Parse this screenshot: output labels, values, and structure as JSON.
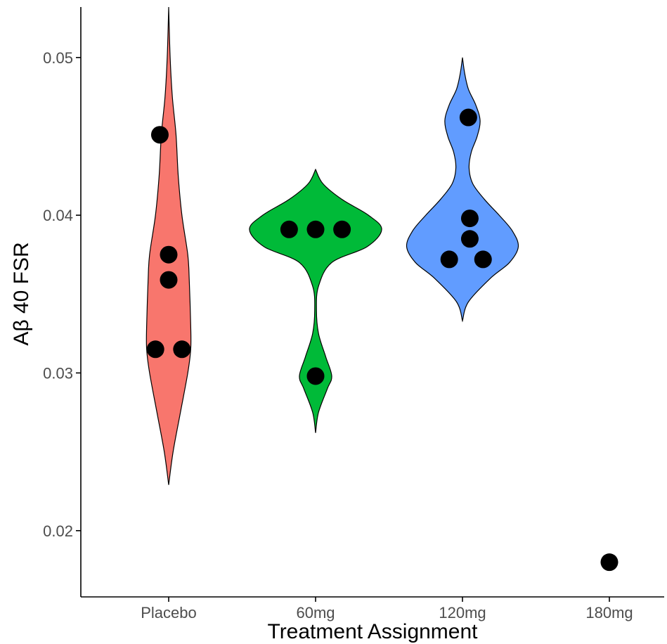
{
  "chart_data": {
    "type": "violin",
    "xlabel": "Treatment Assignment",
    "ylabel": "Aβ 40 FSR",
    "categories": [
      "Placebo",
      "60mg",
      "120mg",
      "180mg"
    ],
    "ylim": [
      0.0158,
      0.0532
    ],
    "yticks": [
      {
        "value": 0.02,
        "label": "0.02"
      },
      {
        "value": 0.03,
        "label": "0.03"
      },
      {
        "value": 0.04,
        "label": "0.04"
      },
      {
        "value": 0.05,
        "label": "0.05"
      }
    ],
    "grid": false,
    "legend": "none",
    "groups": [
      {
        "category": "Placebo",
        "color": "#F8766D",
        "points": [
          {
            "offset": -0.09,
            "y": 0.0315
          },
          {
            "offset": 0.09,
            "y": 0.0315
          },
          {
            "offset": 0.0,
            "y": 0.0359
          },
          {
            "offset": 0.0,
            "y": 0.0375
          },
          {
            "offset": -0.06,
            "y": 0.0451
          }
        ],
        "violin": [
          {
            "y": 0.0229,
            "w": 0.0
          },
          {
            "y": 0.025,
            "w": 0.03
          },
          {
            "y": 0.0275,
            "w": 0.08
          },
          {
            "y": 0.03,
            "w": 0.13
          },
          {
            "y": 0.0315,
            "w": 0.15
          },
          {
            "y": 0.033,
            "w": 0.15
          },
          {
            "y": 0.0359,
            "w": 0.14
          },
          {
            "y": 0.0375,
            "w": 0.13
          },
          {
            "y": 0.04,
            "w": 0.09
          },
          {
            "y": 0.0425,
            "w": 0.065
          },
          {
            "y": 0.0451,
            "w": 0.05
          },
          {
            "y": 0.0475,
            "w": 0.025
          },
          {
            "y": 0.05,
            "w": 0.01
          },
          {
            "y": 0.0532,
            "w": 0.0
          }
        ]
      },
      {
        "category": "60mg",
        "color": "#00BA38",
        "points": [
          {
            "offset": -0.18,
            "y": 0.0391
          },
          {
            "offset": 0.0,
            "y": 0.0391
          },
          {
            "offset": 0.18,
            "y": 0.0391
          },
          {
            "offset": 0.0,
            "y": 0.0298
          }
        ],
        "violin": [
          {
            "y": 0.0262,
            "w": 0.0
          },
          {
            "y": 0.0275,
            "w": 0.02
          },
          {
            "y": 0.029,
            "w": 0.08
          },
          {
            "y": 0.0298,
            "w": 0.11
          },
          {
            "y": 0.031,
            "w": 0.07
          },
          {
            "y": 0.0325,
            "w": 0.02
          },
          {
            "y": 0.034,
            "w": 0.006
          },
          {
            "y": 0.0355,
            "w": 0.02
          },
          {
            "y": 0.037,
            "w": 0.11
          },
          {
            "y": 0.038,
            "w": 0.35
          },
          {
            "y": 0.0391,
            "w": 0.45
          },
          {
            "y": 0.04,
            "w": 0.36
          },
          {
            "y": 0.041,
            "w": 0.18
          },
          {
            "y": 0.042,
            "w": 0.05
          },
          {
            "y": 0.0429,
            "w": 0.0
          }
        ]
      },
      {
        "category": "120mg",
        "color": "#619CFF",
        "points": [
          {
            "offset": 0.04,
            "y": 0.0462
          },
          {
            "offset": 0.05,
            "y": 0.0398
          },
          {
            "offset": 0.05,
            "y": 0.0385
          },
          {
            "offset": -0.09,
            "y": 0.0372
          },
          {
            "offset": 0.14,
            "y": 0.0372
          }
        ],
        "violin": [
          {
            "y": 0.0333,
            "w": 0.0
          },
          {
            "y": 0.0345,
            "w": 0.04
          },
          {
            "y": 0.036,
            "w": 0.19
          },
          {
            "y": 0.037,
            "w": 0.32
          },
          {
            "y": 0.038,
            "w": 0.38
          },
          {
            "y": 0.039,
            "w": 0.34
          },
          {
            "y": 0.04,
            "w": 0.25
          },
          {
            "y": 0.041,
            "w": 0.15
          },
          {
            "y": 0.042,
            "w": 0.07
          },
          {
            "y": 0.043,
            "w": 0.045
          },
          {
            "y": 0.044,
            "w": 0.06
          },
          {
            "y": 0.045,
            "w": 0.1
          },
          {
            "y": 0.046,
            "w": 0.12
          },
          {
            "y": 0.047,
            "w": 0.09
          },
          {
            "y": 0.048,
            "w": 0.04
          },
          {
            "y": 0.049,
            "w": 0.015
          },
          {
            "y": 0.05,
            "w": 0.0
          }
        ]
      },
      {
        "category": "180mg",
        "color": "#C77CFF",
        "points": [
          {
            "offset": 0.0,
            "y": 0.018
          }
        ],
        "violin": []
      }
    ]
  }
}
